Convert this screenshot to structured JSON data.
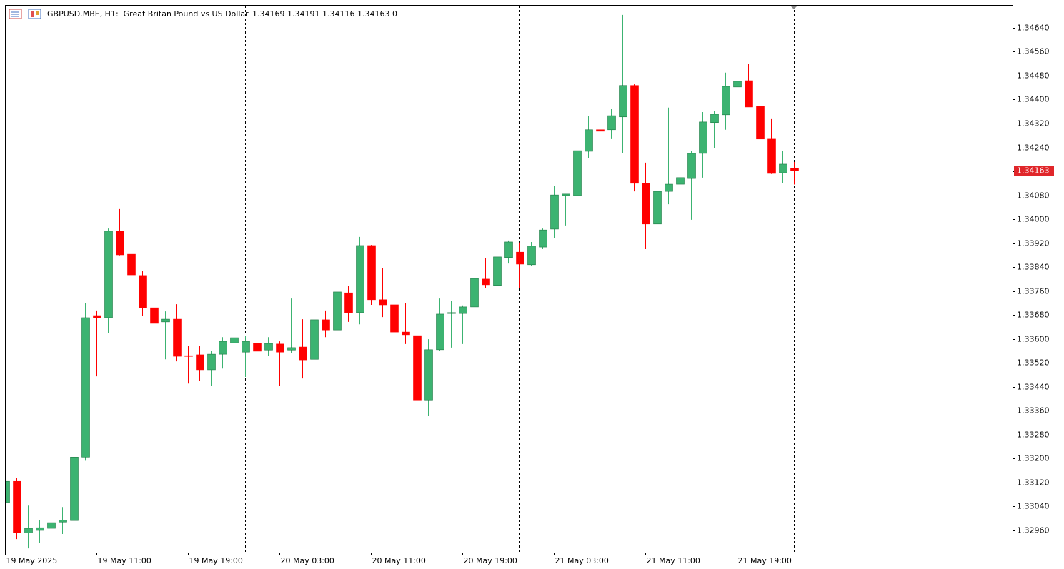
{
  "chart_data": {
    "type": "candlestick",
    "title": "GBPUSD.MBE, H1:  Great Britan Pound vs US Dollar",
    "header_values": "1.34169 1.34191 1.34116 1.34163 0",
    "categories": [
      "19 May 2025",
      null,
      null,
      null,
      null,
      null,
      null,
      null,
      "19 May 11:00",
      null,
      null,
      null,
      null,
      null,
      null,
      null,
      "19 May 19:00",
      null,
      null,
      null,
      null,
      null,
      null,
      null,
      "20 May 03:00",
      null,
      null,
      null,
      null,
      null,
      null,
      null,
      "20 May 11:00",
      null,
      null,
      null,
      null,
      null,
      null,
      null,
      "20 May 19:00",
      null,
      null,
      null,
      null,
      null,
      null,
      null,
      "21 May 03:00",
      null,
      null,
      null,
      null,
      null,
      null,
      null,
      "21 May 11:00",
      null,
      null,
      null,
      null,
      null,
      null,
      null,
      "21 May 19:00",
      null,
      null,
      null,
      null,
      null
    ],
    "open": [
      1.33053,
      1.33124,
      1.32952,
      1.3296,
      1.32967,
      1.32988,
      1.32993,
      1.33205,
      1.33678,
      1.33671,
      1.3396,
      1.33883,
      1.33812,
      1.33704,
      1.33657,
      1.33666,
      1.33544,
      1.33547,
      1.33497,
      1.33549,
      1.33587,
      1.33556,
      1.33585,
      1.33563,
      1.33583,
      1.33563,
      1.33573,
      1.33532,
      1.33664,
      1.3363,
      1.33754,
      1.33688,
      1.33912,
      1.33731,
      1.33714,
      1.33623,
      1.33611,
      1.33396,
      1.33564,
      1.33685,
      1.33685,
      1.33707,
      1.338,
      1.33779,
      1.33872,
      1.3389,
      1.33848,
      1.33907,
      1.33967,
      1.34079,
      1.34079,
      1.34227,
      1.34299,
      1.34299,
      1.34342,
      1.34447,
      1.3412,
      1.33984,
      1.34093,
      1.34117,
      1.34136,
      1.3422,
      1.34323,
      1.34349,
      1.34442,
      1.34463,
      1.34377,
      1.3427,
      1.34155,
      1.34169
    ],
    "high": [
      1.3313,
      1.33134,
      1.33043,
      1.32995,
      1.33019,
      1.33038,
      1.33229,
      1.33721,
      1.33695,
      1.33969,
      1.34034,
      1.33886,
      1.33826,
      1.33752,
      1.33692,
      1.33716,
      1.33578,
      1.33578,
      1.33559,
      1.33606,
      1.33635,
      1.33611,
      1.33597,
      1.33606,
      1.33592,
      1.33735,
      1.33666,
      1.33695,
      1.33695,
      1.33824,
      1.33778,
      1.33941,
      1.33914,
      1.33836,
      1.33731,
      1.33719,
      1.33613,
      1.33599,
      1.33735,
      1.33726,
      1.33712,
      1.33852,
      1.33869,
      1.33902,
      1.33929,
      1.33922,
      1.33924,
      1.33969,
      1.3411,
      1.34084,
      1.34263,
      1.34346,
      1.34351,
      1.3437,
      1.34683,
      1.34451,
      1.34189,
      1.34103,
      1.34373,
      1.34165,
      1.34227,
      1.34358,
      1.34361,
      1.3449,
      1.34509,
      1.34518,
      1.34382,
      1.34337,
      1.34229,
      1.34191
    ],
    "low": [
      1.33045,
      1.32931,
      1.329,
      1.32919,
      1.32914,
      1.32948,
      1.32948,
      1.33193,
      1.33475,
      1.33621,
      1.33879,
      1.33743,
      1.33678,
      1.33599,
      1.33532,
      1.33525,
      1.33451,
      1.33461,
      1.33442,
      1.33501,
      1.33583,
      1.33473,
      1.3354,
      1.33542,
      1.33442,
      1.33554,
      1.33468,
      1.33516,
      1.33606,
      1.33628,
      1.33657,
      1.33649,
      1.33714,
      1.33673,
      1.33532,
      1.33583,
      1.33349,
      1.33344,
      1.33559,
      1.33571,
      1.33583,
      1.3369,
      1.33771,
      1.33774,
      1.33852,
      1.33769,
      1.33845,
      1.339,
      1.33938,
      1.33979,
      1.3407,
      1.34203,
      1.34258,
      1.3427,
      1.3422,
      1.34093,
      1.339,
      1.33881,
      1.3405,
      1.33957,
      1.33998,
      1.34139,
      1.34237,
      1.34299,
      1.34411,
      1.34375,
      1.3426,
      1.34151,
      1.3412,
      1.34116
    ],
    "close": [
      1.33124,
      1.32952,
      1.32967,
      1.32969,
      1.32986,
      1.32995,
      1.33205,
      1.33671,
      1.33671,
      1.3396,
      1.33881,
      1.33814,
      1.33704,
      1.33652,
      1.33666,
      1.33542,
      1.33542,
      1.33497,
      1.33549,
      1.33592,
      1.33604,
      1.33592,
      1.33559,
      1.33585,
      1.33556,
      1.33571,
      1.3353,
      1.33664,
      1.3363,
      1.33757,
      1.33688,
      1.33912,
      1.33731,
      1.33714,
      1.33623,
      1.33614,
      1.33396,
      1.33564,
      1.33683,
      1.33688,
      1.33707,
      1.33802,
      1.33781,
      1.33874,
      1.33924,
      1.3385,
      1.3391,
      1.33964,
      1.34081,
      1.34084,
      1.34229,
      1.34299,
      1.34294,
      1.34346,
      1.34447,
      1.3412,
      1.33984,
      1.34093,
      1.34117,
      1.34139,
      1.3422,
      1.34325,
      1.34351,
      1.34444,
      1.34461,
      1.34375,
      1.34268,
      1.34153,
      1.34184,
      1.34163
    ],
    "up_color": "#3cb371",
    "down_color": "#ff0000",
    "last_price": 1.34163,
    "last_price_color": "#e0262a",
    "ylim": [
      1.32886,
      1.34716
    ],
    "yticks": [
      {
        "value": 1.3464,
        "label": "1.34640"
      },
      {
        "value": 1.3456,
        "label": "1.34560"
      },
      {
        "value": 1.3448,
        "label": "1.34480"
      },
      {
        "value": 1.344,
        "label": "1.34400"
      },
      {
        "value": 1.3432,
        "label": "1.34320"
      },
      {
        "value": 1.3424,
        "label": "1.34240"
      },
      {
        "value": 1.3416,
        "label": "1.34160"
      },
      {
        "value": 1.3408,
        "label": "1.34080"
      },
      {
        "value": 1.34,
        "label": "1.34000"
      },
      {
        "value": 1.3392,
        "label": "1.33920"
      },
      {
        "value": 1.3384,
        "label": "1.33840"
      },
      {
        "value": 1.3376,
        "label": "1.33760"
      },
      {
        "value": 1.3368,
        "label": "1.33680"
      },
      {
        "value": 1.336,
        "label": "1.33600"
      },
      {
        "value": 1.3352,
        "label": "1.33520"
      },
      {
        "value": 1.3344,
        "label": "1.33440"
      },
      {
        "value": 1.3336,
        "label": "1.33360"
      },
      {
        "value": 1.3328,
        "label": "1.33280"
      },
      {
        "value": 1.332,
        "label": "1.33200"
      },
      {
        "value": 1.3312,
        "label": "1.33120"
      },
      {
        "value": 1.3304,
        "label": "1.33040"
      },
      {
        "value": 1.3296,
        "label": "1.32960"
      }
    ]
  }
}
